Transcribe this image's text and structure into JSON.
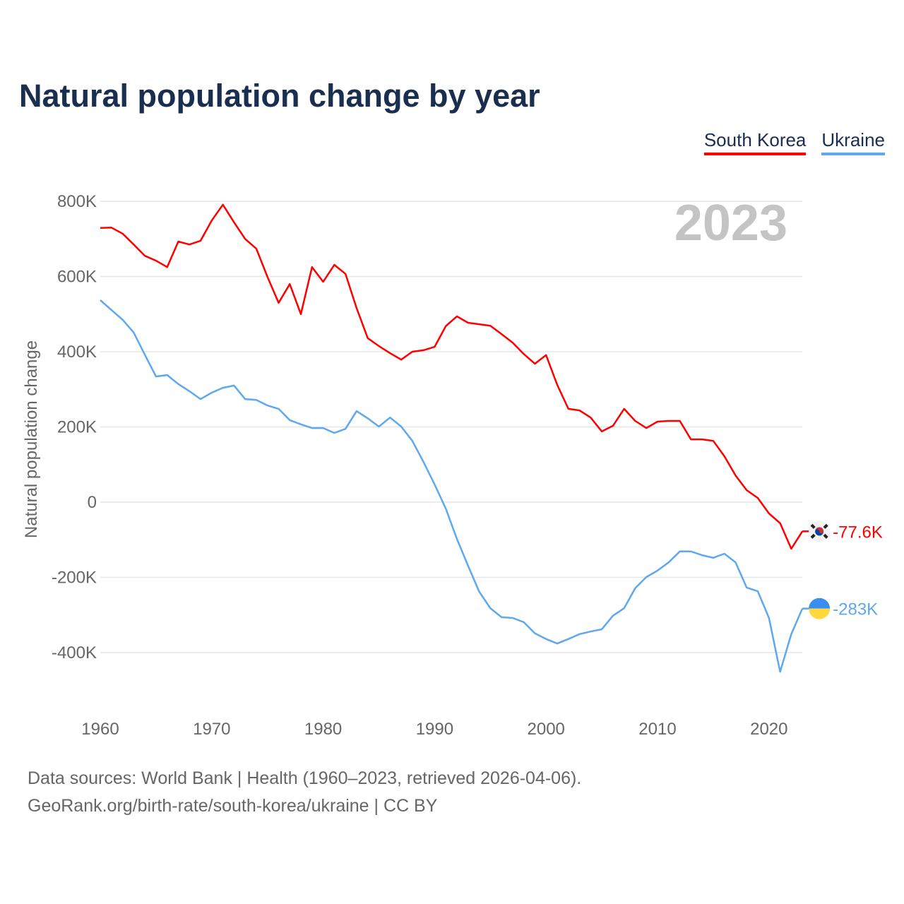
{
  "title": "Natural population change by year",
  "legend": [
    {
      "label": "South Korea",
      "color": "#ff0000"
    },
    {
      "label": "Ukraine",
      "color": "#5ea8ee"
    }
  ],
  "year_label": "2023",
  "sources": [
    "Data sources: World Bank | Health (1960–2023, retrieved 2026-04-06).",
    "GeoRank.org/birth-rate/south-korea/ukraine | CC BY"
  ],
  "chart_data": {
    "type": "line",
    "title": "Natural population change by year",
    "xlabel": "",
    "ylabel": "Natural population change",
    "xlim": [
      1960,
      2023
    ],
    "ylim": [
      -500,
      850
    ],
    "x_ticks": [
      1960,
      1970,
      1980,
      1990,
      2000,
      2010,
      2020
    ],
    "y_ticks": [
      {
        "v": 800,
        "label": "800K"
      },
      {
        "v": 600,
        "label": "600K"
      },
      {
        "v": 400,
        "label": "400K"
      },
      {
        "v": 200,
        "label": "200K"
      },
      {
        "v": 0,
        "label": "0"
      },
      {
        "v": -200,
        "label": "-200K"
      },
      {
        "v": -400,
        "label": "-400K"
      }
    ],
    "grid": true,
    "legend_position": "top-right",
    "x_start": 1960,
    "units": "thousands",
    "series": [
      {
        "name": "South Korea",
        "color": "#ff0000",
        "end_label": "-77.6K",
        "flag": "south-korea",
        "values": [
          729,
          730,
          714,
          685,
          655,
          642,
          625,
          693,
          685,
          695,
          749,
          791,
          744,
          700,
          674,
          599,
          530,
          580,
          500,
          625,
          586,
          631,
          607,
          516,
          436,
          415,
          396,
          379,
          400,
          404,
          413,
          468,
          494,
          477,
          473,
          469,
          447,
          424,
          394,
          368,
          391,
          312,
          248,
          244,
          225,
          188,
          203,
          248,
          216,
          197,
          214,
          216,
          216,
          167,
          167,
          163,
          122,
          71,
          32,
          11,
          -30,
          -56,
          -124,
          -77.6
        ]
      },
      {
        "name": "Ukraine",
        "color": "#5ea8ee",
        "end_label": "-283K",
        "flag": "ukraine",
        "values": [
          537,
          511,
          485,
          451,
          392,
          334,
          338,
          314,
          295,
          274,
          291,
          304,
          310,
          274,
          272,
          257,
          248,
          218,
          207,
          197,
          197,
          184,
          195,
          242,
          223,
          201,
          225,
          201,
          163,
          107,
          47,
          -17,
          -98,
          -169,
          -238,
          -282,
          -306,
          -308,
          -319,
          -349,
          -364,
          -376,
          -364,
          -351,
          -344,
          -338,
          -302,
          -282,
          -229,
          -199,
          -182,
          -160,
          -131,
          -131,
          -141,
          -148,
          -137,
          -160,
          -227,
          -237,
          -308,
          -451,
          -351,
          -283
        ]
      }
    ]
  }
}
